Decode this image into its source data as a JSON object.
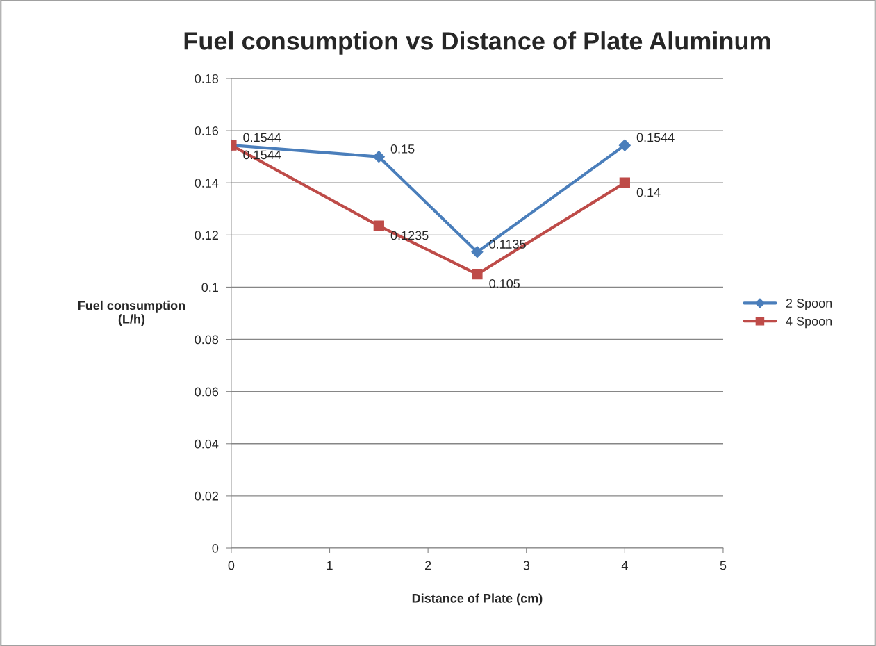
{
  "chart_data": {
    "type": "line",
    "title": "Fuel consumption vs Distance of Plate Aluminum",
    "xlabel": "Distance of Plate (cm)",
    "ylabel": "Fuel consumption\n(L/h)",
    "x": [
      0,
      1.5,
      2.5,
      4
    ],
    "series": [
      {
        "name": "2 Spoon",
        "color": "#4a7ebb",
        "marker": "diamond",
        "values": [
          0.1544,
          0.15,
          0.1135,
          0.1544
        ]
      },
      {
        "name": "4 Spoon",
        "color": "#be4b48",
        "marker": "square",
        "values": [
          0.1544,
          0.1235,
          0.105,
          0.14
        ]
      }
    ],
    "xlim": [
      0,
      5
    ],
    "xticks": [
      0,
      1,
      2,
      3,
      4,
      5
    ],
    "ylim": [
      0,
      0.18
    ],
    "yticks": [
      {
        "value": 0,
        "label": "0"
      },
      {
        "value": 0.02,
        "label": "0.02"
      },
      {
        "value": 0.04,
        "label": "0.04"
      },
      {
        "value": 0.06,
        "label": "0.06"
      },
      {
        "value": 0.08,
        "label": "0.08"
      },
      {
        "value": 0.1,
        "label": "0.1"
      },
      {
        "value": 0.12,
        "label": "0.12"
      },
      {
        "value": 0.14,
        "label": "0.14"
      },
      {
        "value": 0.16,
        "label": "0.16"
      },
      {
        "value": 0.18,
        "label": "0.18"
      }
    ],
    "grid": "y",
    "legend": "right",
    "line_style": "solid",
    "data_labels": true
  }
}
